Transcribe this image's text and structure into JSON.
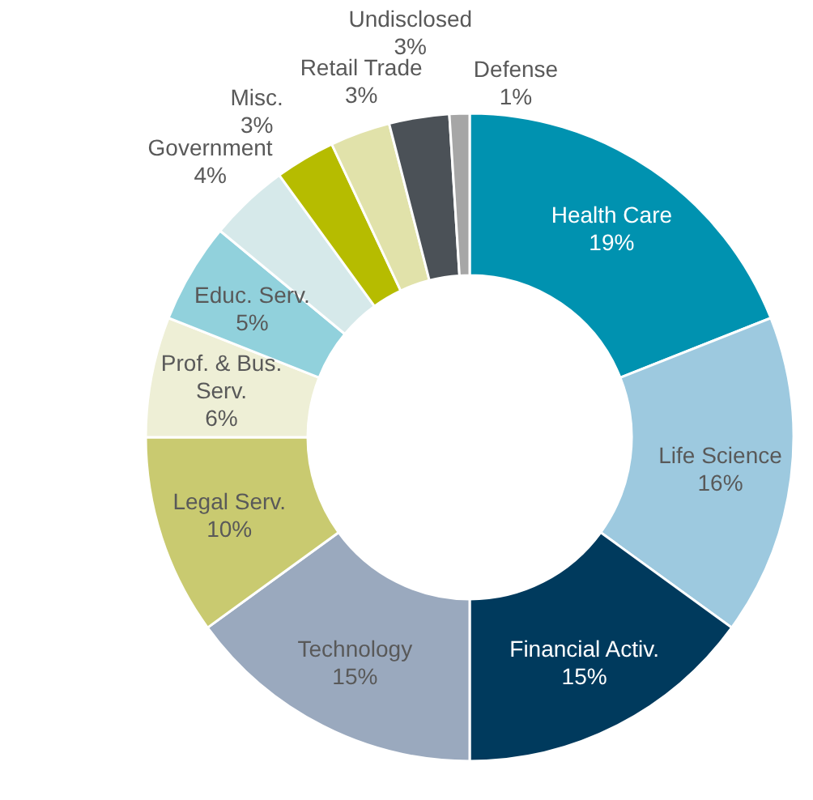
{
  "chart_data": {
    "type": "donut",
    "categories": [
      "Health Care",
      "Life Science",
      "Financial Activ.",
      "Technology",
      "Legal Serv.",
      "Prof. & Bus. Serv.",
      "Educ. Serv.",
      "Government",
      "Misc.",
      "Retail Trade",
      "Undisclosed",
      "Defense"
    ],
    "values": [
      19,
      16,
      15,
      15,
      10,
      6,
      5,
      4,
      3,
      3,
      3,
      1
    ],
    "colors": [
      "#0092b0",
      "#9dc9df",
      "#003a5d",
      "#9aa9be",
      "#c9ca70",
      "#eeefd6",
      "#91d1dc",
      "#d6e9ea",
      "#b6bc00",
      "#e1e2aa",
      "#4b5157",
      "#a6a6a6"
    ],
    "value_labels": [
      "19%",
      "16%",
      "15%",
      "15%",
      "10%",
      "6%",
      "5%",
      "4%",
      "3%",
      "3%",
      "3%",
      "1%"
    ]
  }
}
